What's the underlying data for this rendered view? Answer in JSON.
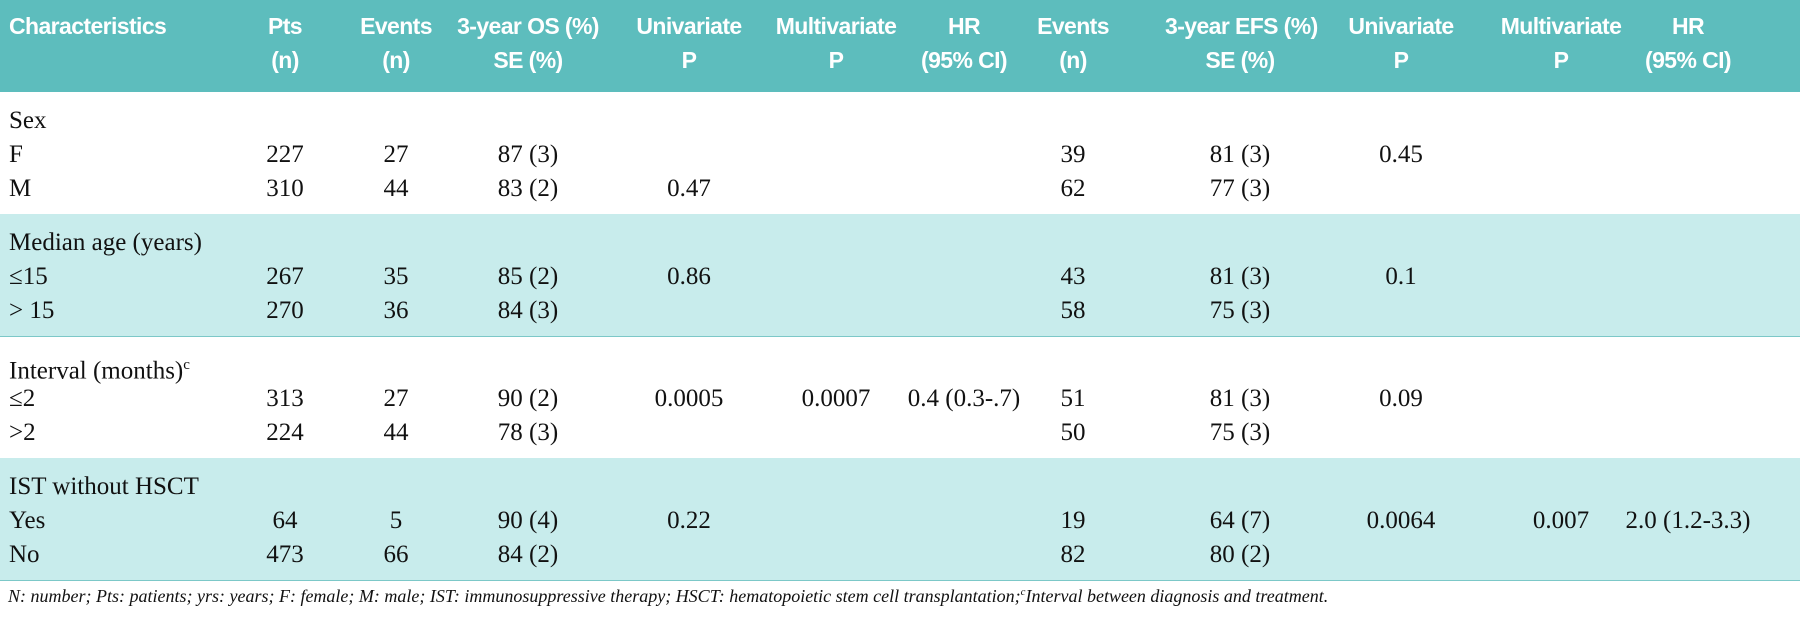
{
  "table": {
    "columns": [
      {
        "lines": [
          "Characteristics"
        ]
      },
      {
        "lines": [
          "Pts",
          "(n)"
        ]
      },
      {
        "lines": [
          "Events",
          "(n)"
        ]
      },
      {
        "lines": [
          "3-year OS (%)",
          "SE (%)"
        ]
      },
      {
        "lines": [
          "Univariate",
          "P"
        ]
      },
      {
        "lines": [
          "Multivariate",
          "P"
        ]
      },
      {
        "lines": [
          "HR",
          "(95% CI)"
        ]
      },
      {
        "lines": [
          "Events",
          "(n)"
        ]
      },
      {
        "lines": [
          "3-year EFS (%)",
          "SE (%)"
        ]
      },
      {
        "lines": [
          "Univariate",
          "P"
        ]
      },
      {
        "lines": [
          "Multivariate",
          "P"
        ]
      },
      {
        "lines": [
          "HR",
          "(95% CI)"
        ]
      }
    ],
    "groups": [
      {
        "title": "Sex",
        "rows": [
          [
            "F",
            227,
            27,
            "87 (3)",
            null,
            null,
            null,
            39,
            "81 (3)",
            0.45,
            null,
            null
          ],
          [
            "M",
            310,
            44,
            "83 (2)",
            0.47,
            null,
            null,
            62,
            "77 (3)",
            null,
            null,
            null
          ]
        ]
      },
      {
        "title": "Median age (years)",
        "rows": [
          [
            "≤15",
            267,
            35,
            "85 (2)",
            0.86,
            null,
            null,
            43,
            "81 (3)",
            0.1,
            null,
            null
          ],
          [
            "> 15",
            270,
            36,
            "84 (3)",
            null,
            null,
            null,
            58,
            "75 (3)",
            null,
            null,
            null
          ]
        ]
      },
      {
        "title": "Interval (months)",
        "note_mark": "c",
        "rows": [
          [
            "≤2",
            313,
            27,
            "90 (2)",
            0.0005,
            0.0007,
            "0.4 (0.3-.7)",
            51,
            "81 (3)",
            0.09,
            null,
            null
          ],
          [
            ">2",
            224,
            44,
            "78 (3)",
            null,
            null,
            null,
            50,
            "75 (3)",
            null,
            null,
            null
          ]
        ]
      },
      {
        "title": "IST without HSCT",
        "rows": [
          [
            "Yes",
            64,
            5,
            "90 (4)",
            0.22,
            null,
            null,
            19,
            "64 (7)",
            0.0064,
            0.007,
            "2.0 (1.2-3.3)"
          ],
          [
            "No",
            473,
            66,
            "84 (2)",
            null,
            null,
            null,
            82,
            "80 (2)",
            null,
            null,
            null
          ]
        ]
      }
    ]
  },
  "footnote": {
    "text": "N: number; Pts: patients; yrs: years; F: female; M: male; IST: immunosuppressive therapy; HSCT: hematopoietic stem cell transplantation;",
    "mark": "c",
    "text_after": "Interval between diagnosis and treatment."
  }
}
